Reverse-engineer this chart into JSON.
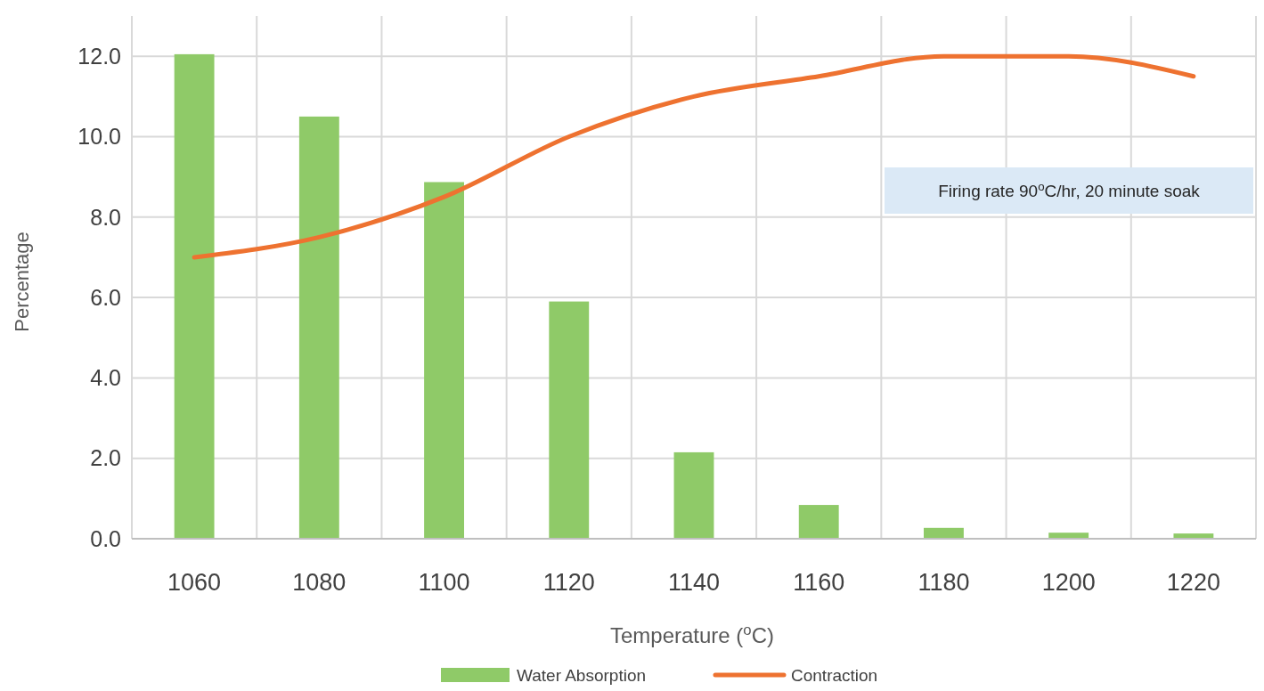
{
  "chart_data": {
    "type": "bar",
    "xlabel": "Temperature ($^{o}$C)",
    "ylabel": "Percentage",
    "categories": [
      "1060",
      "1080",
      "1100",
      "1120",
      "1140",
      "1160",
      "1180",
      "1200",
      "1220"
    ],
    "series": [
      {
        "name": "Water Absorption",
        "color": "#8fca68",
        "values": [
          12.05,
          10.5,
          8.87,
          5.9,
          2.15,
          0.84,
          0.27,
          0.15,
          0.13
        ]
      },
      {
        "name": "Contraction",
        "type": "line",
        "color": "#ee7230",
        "values": [
          7.0,
          7.5,
          8.5,
          10.0,
          11.0,
          11.5,
          12.0,
          12.0,
          11.5
        ]
      }
    ],
    "ylim": [
      0,
      13
    ],
    "yticks": [
      {
        "value": 0,
        "label": "0.0"
      },
      {
        "value": 2,
        "label": "2.0"
      },
      {
        "value": 4,
        "label": "4.0"
      },
      {
        "value": 6,
        "label": "6.0"
      },
      {
        "value": 8,
        "label": "8.0"
      },
      {
        "value": 10,
        "label": "10.0"
      },
      {
        "value": 12,
        "label": "12.0"
      }
    ],
    "grid": true,
    "legend": "bottom",
    "marker": "none",
    "line_style": "solid",
    "annotations": [
      "Firing rate 90$^{o}$C/hr, 20 minute soak"
    ]
  }
}
